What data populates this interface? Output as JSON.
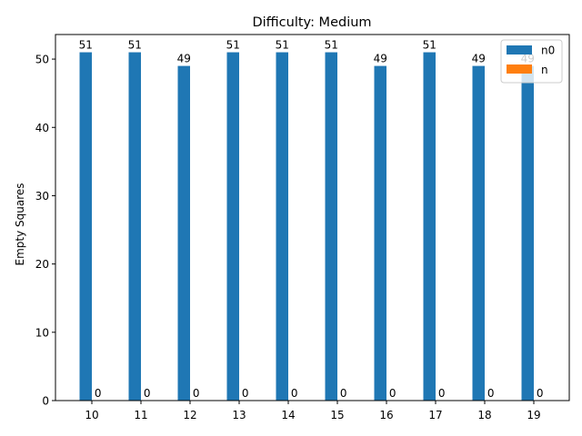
{
  "chart_data": {
    "type": "bar",
    "title": "Difficulty: Medium",
    "xlabel": "",
    "ylabel": "Empty Squares",
    "categories": [
      "10",
      "11",
      "12",
      "13",
      "14",
      "15",
      "16",
      "17",
      "18",
      "19"
    ],
    "series": [
      {
        "name": "n0",
        "color": "#1f77b4",
        "values": [
          51,
          51,
          49,
          51,
          51,
          51,
          49,
          51,
          49,
          49
        ]
      },
      {
        "name": "n",
        "color": "#ff7f0e",
        "values": [
          0,
          0,
          0,
          0,
          0,
          0,
          0,
          0,
          0,
          0
        ]
      }
    ],
    "ylim": [
      0,
      53.6
    ],
    "yticks": [
      0,
      10,
      20,
      30,
      40,
      50
    ],
    "grid": false,
    "legend_position": "top-right"
  }
}
